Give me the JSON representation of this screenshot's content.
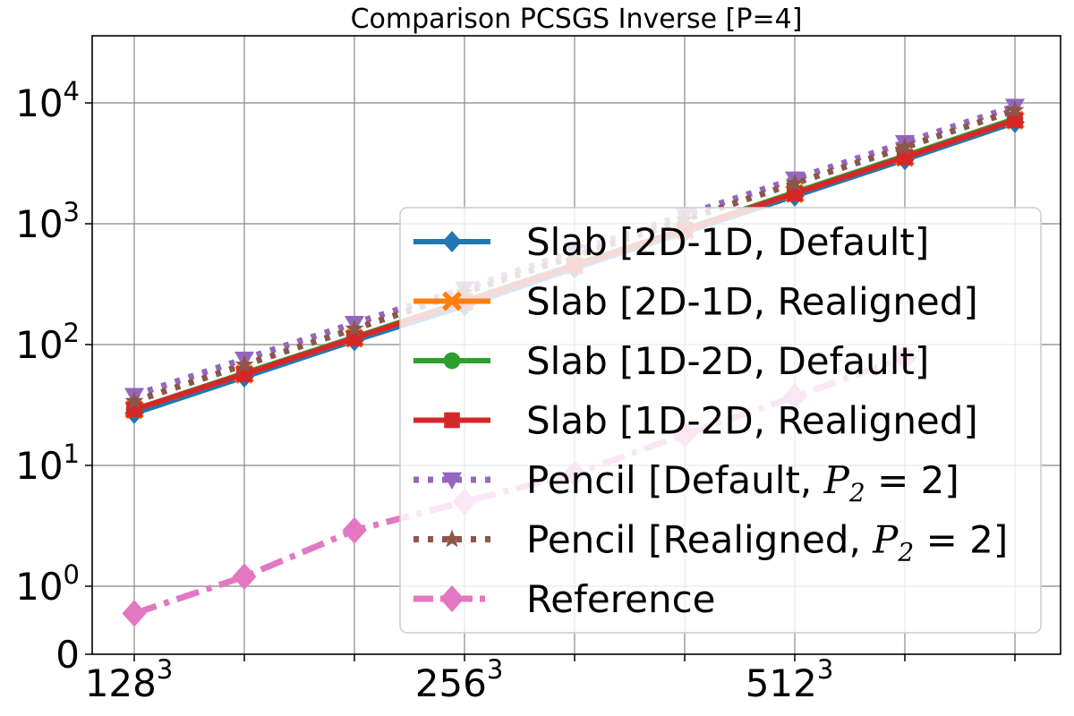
{
  "chart_data": {
    "type": "line",
    "title": "Comparison PCSGS Inverse [P=4]",
    "xlabel": "",
    "ylabel": "",
    "yscale": "symlog",
    "grid": true,
    "legend_position": "lower-right",
    "x": [
      1,
      2,
      3,
      4,
      5,
      6,
      7,
      8,
      9
    ],
    "x_ticks": [
      {
        "x": 1,
        "base": "128",
        "exp": "3"
      },
      {
        "x": 4,
        "base": "256",
        "exp": "3"
      },
      {
        "x": 7,
        "base": "512",
        "exp": "3"
      }
    ],
    "y_ticks": [
      {
        "value": 0,
        "label": "0",
        "base": "",
        "exp": ""
      },
      {
        "value": 1,
        "label": "",
        "base": "10",
        "exp": "0"
      },
      {
        "value": 10,
        "label": "",
        "base": "10",
        "exp": "1"
      },
      {
        "value": 100,
        "label": "",
        "base": "10",
        "exp": "2"
      },
      {
        "value": 1000,
        "label": "",
        "base": "10",
        "exp": "3"
      },
      {
        "value": 10000,
        "label": "",
        "base": "10",
        "exp": "4"
      }
    ],
    "series": [
      {
        "name": "Slab [2D-1D, Default]",
        "label_main": "Slab [2D-1D, Default]",
        "label_var": "",
        "label_sub": "",
        "label_tail": "",
        "color": "#1f77b4",
        "marker": "diamond",
        "dash": "solid",
        "values": [
          27,
          54,
          108,
          210,
          430,
          850,
          1700,
          3400,
          6900
        ]
      },
      {
        "name": "Slab [2D-1D, Realigned]",
        "label_main": "Slab [2D-1D, Realigned]",
        "label_var": "",
        "label_sub": "",
        "label_tail": "",
        "color": "#ff7f0e",
        "marker": "x",
        "dash": "solid",
        "values": [
          29,
          57,
          113,
          225,
          450,
          880,
          1780,
          3550,
          7200
        ]
      },
      {
        "name": "Slab [1D-2D, Default]",
        "label_main": "Slab [1D-2D, Default]",
        "label_var": "",
        "label_sub": "",
        "label_tail": "",
        "color": "#2ca02c",
        "marker": "circle",
        "dash": "solid",
        "values": [
          29,
          58,
          115,
          230,
          460,
          900,
          1820,
          3650,
          7400
        ]
      },
      {
        "name": "Slab [1D-2D, Realigned]",
        "label_main": "Slab [1D-2D, Realigned]",
        "label_var": "",
        "label_sub": "",
        "label_tail": "",
        "color": "#d62728",
        "marker": "square",
        "dash": "solid",
        "values": [
          29,
          57,
          113,
          225,
          450,
          890,
          1780,
          3550,
          7200
        ]
      },
      {
        "name": "Pencil [Default, P2 = 2]",
        "label_main": "Pencil [Default, ",
        "label_var": "P",
        "label_sub": "2",
        "label_tail": " = 2]",
        "color": "#9467bd",
        "marker": "triangle-down",
        "dash": "dotted",
        "values": [
          38,
          76,
          150,
          290,
          590,
          1180,
          2350,
          4700,
          9400
        ]
      },
      {
        "name": "Pencil [Realigned, P2 = 2]",
        "label_main": "Pencil [Realigned, ",
        "label_var": "P",
        "label_sub": "2",
        "label_tail": " = 2]",
        "color": "#8c564b",
        "marker": "star",
        "dash": "dotted",
        "values": [
          34,
          68,
          135,
          270,
          540,
          1080,
          2160,
          4300,
          8700
        ]
      },
      {
        "name": "Reference",
        "label_main": "Reference",
        "label_var": "",
        "label_sub": "",
        "label_tail": "",
        "color": "#e377c2",
        "marker": "diamond",
        "dash": "dashdot",
        "values": [
          0.6,
          1.2,
          2.9,
          5.0,
          8.5,
          18,
          37,
          78,
          null
        ]
      }
    ]
  }
}
